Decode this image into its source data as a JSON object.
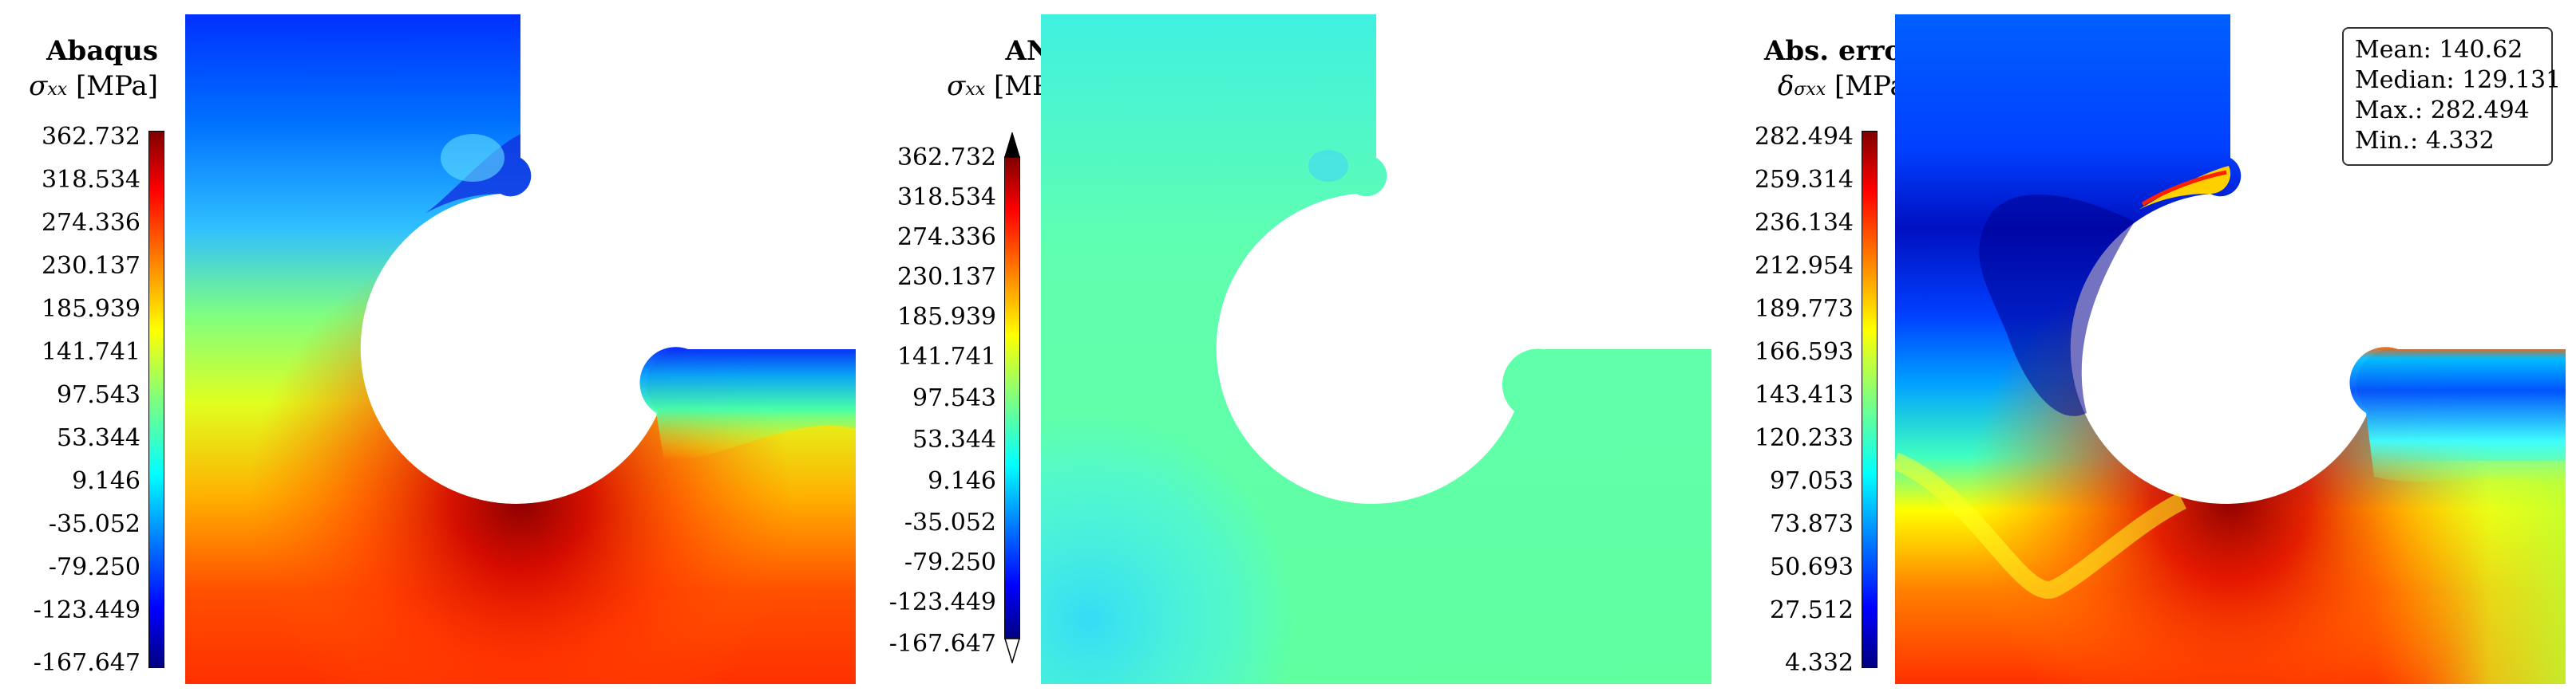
{
  "panels": [
    {
      "title": "Abaqus",
      "quantity_symbol": "σ",
      "quantity_subscript": "xx",
      "unit": "[MPa]",
      "colorbar_ticks": [
        "362.732",
        "318.534",
        "274.336",
        "230.137",
        "185.939",
        "141.741",
        "97.543",
        "53.344",
        "9.146",
        "-35.052",
        "-79.250",
        "-123.449",
        "-167.647"
      ]
    },
    {
      "title": "ANN",
      "quantity_symbol": "σ",
      "quantity_subscript": "xx",
      "unit": "[MPa]",
      "colorbar_ticks": [
        "362.732",
        "318.534",
        "274.336",
        "230.137",
        "185.939",
        "141.741",
        "97.543",
        "53.344",
        "9.146",
        "-35.052",
        "-79.250",
        "-123.449",
        "-167.647"
      ]
    },
    {
      "title": "Abs. error",
      "quantity_symbol": "δ",
      "quantity_subscript": "σxx",
      "unit": "[MPa]",
      "colorbar_ticks": [
        "282.494",
        "259.314",
        "236.134",
        "212.954",
        "189.773",
        "166.593",
        "143.413",
        "120.233",
        "97.053",
        "73.873",
        "50.693",
        "27.512",
        "4.332"
      ]
    }
  ],
  "stats": {
    "mean": "Mean: 140.62",
    "median": "Median: 129.131",
    "max": "Max.: 282.494",
    "min": "Min.: 4.332"
  },
  "colormap": "jet"
}
